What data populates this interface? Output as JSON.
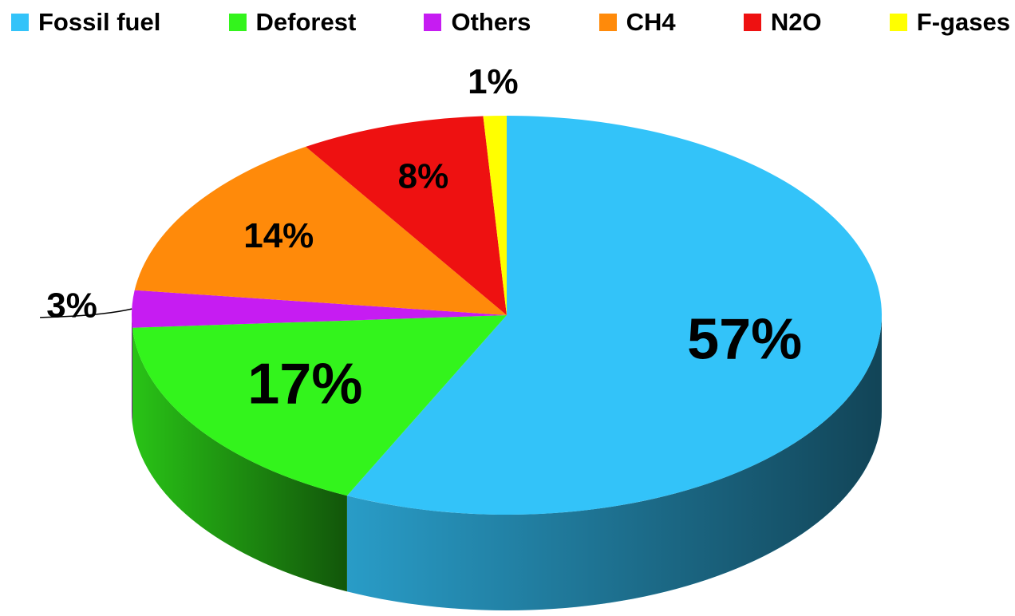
{
  "chart_data": {
    "type": "pie",
    "categories": [
      "Fossil fuel",
      "Deforest",
      "Others",
      "CH4",
      "N2O",
      "F-gases"
    ],
    "values": [
      57,
      17,
      3,
      14,
      8,
      1
    ],
    "value_labels": [
      "57%",
      "17%",
      "3%",
      "14%",
      "8%",
      "1%"
    ],
    "colors": [
      "#33c3f9",
      "#33f41c",
      "#c61cf2",
      "#ff8a0a",
      "#ee1111",
      "#ffff00"
    ],
    "legend": "top"
  }
}
